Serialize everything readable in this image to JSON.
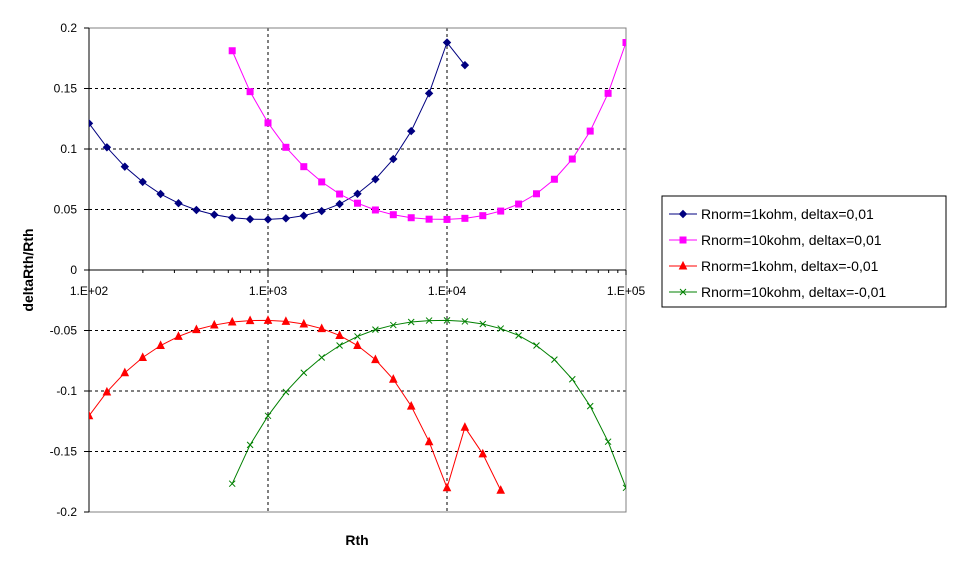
{
  "chart_data": {
    "type": "line",
    "title": "",
    "xlabel": "Rth",
    "ylabel": "deltaRth/Rth",
    "x_scale": "log",
    "xlim": [
      100,
      100000
    ],
    "ylim": [
      -0.2,
      0.2
    ],
    "x_ticks": [
      100,
      1000,
      10000,
      100000
    ],
    "x_tick_labels": [
      "1.E+02",
      "1.E+03",
      "1.E+04",
      "1.E+05"
    ],
    "y_ticks": [
      -0.2,
      -0.15,
      -0.1,
      -0.05,
      0,
      0.05,
      0.1,
      0.15,
      0.2
    ],
    "y_tick_labels": [
      "-0.2",
      "-0.15",
      "-0.1",
      "-0.05",
      "0",
      "0.05",
      "0.1",
      "0.15",
      "0.2"
    ],
    "grid": "dashed at x=1.E+03, 1.E+04 and every 0.05 on y",
    "legend_position": "right",
    "series": [
      {
        "name": "Rnorm=1kohm, deltax=0,01",
        "color": "#000080",
        "marker": "diamond",
        "x": [
          100,
          125.9,
          158.5,
          199.5,
          251.2,
          316.2,
          398.1,
          501.2,
          631,
          794.3,
          1000,
          1259,
          1585,
          1995,
          2512,
          3162,
          3981,
          5012,
          6310,
          7943,
          10000,
          12589
        ],
        "y": [
          0.1212,
          0.1014,
          0.0854,
          0.0728,
          0.0628,
          0.0552,
          0.0496,
          0.0457,
          0.0432,
          0.042,
          0.0418,
          0.0427,
          0.0449,
          0.0487,
          0.0545,
          0.063,
          0.075,
          0.0917,
          0.1148,
          0.146,
          0.188,
          0.1693
        ]
      },
      {
        "name": "Rnorm=10kohm, deltax=0,01",
        "color": "#FF00FF",
        "marker": "square",
        "x": [
          630.96,
          794.33,
          1000,
          1258.9,
          1584.9,
          1995.3,
          2511.9,
          3162.3,
          3981.1,
          5011.9,
          6309.6,
          7943.3,
          10000,
          12589,
          15849,
          19953,
          25119,
          31623,
          39811,
          50119,
          63096,
          79433,
          100000
        ],
        "y": [
          0.1812,
          0.1474,
          0.1216,
          0.1014,
          0.0854,
          0.0728,
          0.0628,
          0.0552,
          0.0496,
          0.0457,
          0.0432,
          0.042,
          0.0418,
          0.0427,
          0.0449,
          0.0487,
          0.0545,
          0.063,
          0.075,
          0.0917,
          0.1148,
          0.146,
          0.188
        ]
      },
      {
        "name": "Rnorm=1kohm, deltax=-0,01",
        "color": "#FF0000",
        "marker": "triangle",
        "x": [
          100,
          125.9,
          158.5,
          199.5,
          251.2,
          316.2,
          398.1,
          501.2,
          631,
          794.3,
          1000,
          1259,
          1585,
          1995,
          2512,
          3162,
          3981,
          5012,
          6310,
          7943,
          10000,
          12589,
          15849,
          19953
        ],
        "y": [
          -0.1205,
          -0.1008,
          -0.0849,
          -0.0723,
          -0.0624,
          -0.0549,
          -0.0493,
          -0.0455,
          -0.043,
          -0.0418,
          -0.0416,
          -0.0425,
          -0.0446,
          -0.0484,
          -0.0541,
          -0.0624,
          -0.0741,
          -0.0903,
          -0.1125,
          -0.1419,
          -0.18,
          -0.13,
          -0.152,
          -0.182
        ]
      },
      {
        "name": "Rnorm=10kohm, deltax=-0,01",
        "color": "#008000",
        "marker": "x",
        "x": [
          630.96,
          794.33,
          1000,
          1258.9,
          1584.9,
          1995.3,
          2511.9,
          3162.3,
          3981.1,
          5011.9,
          6309.6,
          7943.3,
          10000,
          12589,
          15849,
          19953,
          25119,
          31623,
          39811,
          50119,
          63096,
          79433,
          100000
        ],
        "y": [
          -0.1766,
          -0.1445,
          -0.1205,
          -0.1008,
          -0.0849,
          -0.0723,
          -0.0624,
          -0.0549,
          -0.0493,
          -0.0455,
          -0.043,
          -0.0418,
          -0.0416,
          -0.0425,
          -0.0446,
          -0.0484,
          -0.0541,
          -0.0624,
          -0.0741,
          -0.0903,
          -0.1125,
          -0.1419,
          -0.18
        ]
      }
    ]
  }
}
